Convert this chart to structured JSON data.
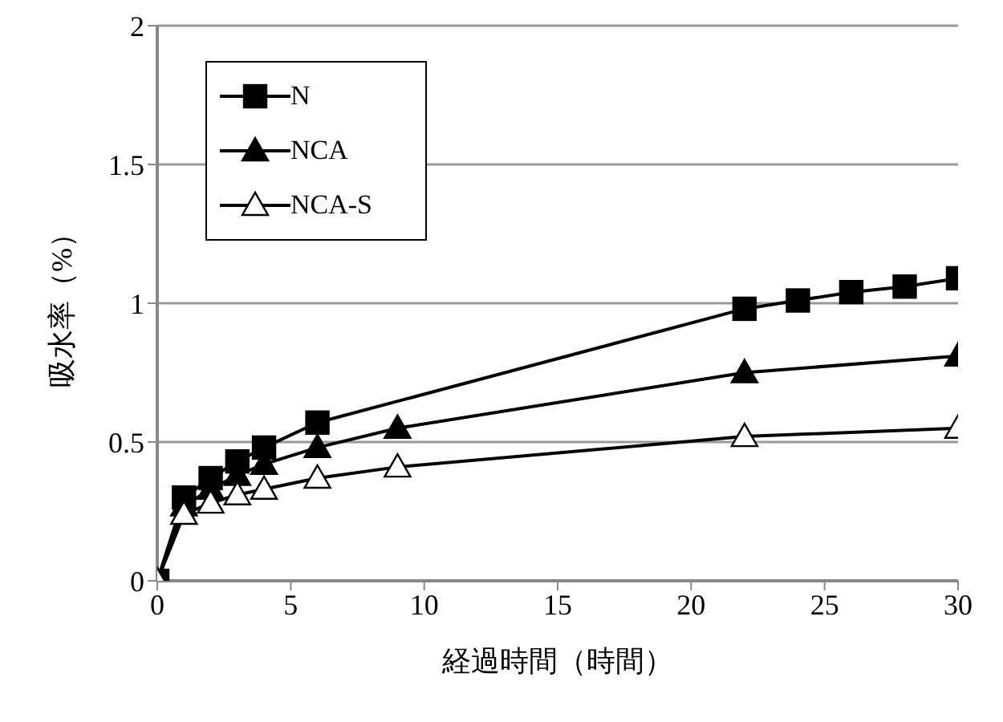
{
  "chart_data": {
    "type": "line",
    "xlabel": "経過時間（時間）",
    "ylabel": "吸水率（%）",
    "xlim": [
      0,
      30
    ],
    "xticks": [
      0,
      5,
      10,
      15,
      20,
      25,
      30
    ],
    "ylim": [
      0,
      2
    ],
    "yticks": [
      0,
      0.5,
      1,
      1.5,
      2
    ],
    "grid": "y",
    "legend": "top left",
    "line_style": "solid",
    "series": [
      {
        "name": "N",
        "color": "#000000",
        "marker": "square",
        "x": [
          0,
          1,
          2,
          3,
          4,
          6,
          22,
          24,
          26,
          28,
          30
        ],
        "values": [
          0,
          0.3,
          0.37,
          0.43,
          0.48,
          0.57,
          0.98,
          1.01,
          1.04,
          1.06,
          1.09
        ]
      },
      {
        "name": "NCA",
        "color": "#000000",
        "marker": "triangle",
        "x": [
          0,
          1,
          2,
          3,
          4,
          6,
          9,
          22,
          30
        ],
        "values": [
          0,
          0.27,
          0.33,
          0.38,
          0.42,
          0.48,
          0.55,
          0.75,
          0.81
        ]
      },
      {
        "name": "NCA-S",
        "color": "#000000",
        "marker": "triangle",
        "x": [
          0,
          1,
          2,
          3,
          4,
          6,
          9,
          22,
          30
        ],
        "values": [
          0,
          0.24,
          0.28,
          0.31,
          0.33,
          0.37,
          0.41,
          0.52,
          0.55
        ]
      }
    ]
  }
}
